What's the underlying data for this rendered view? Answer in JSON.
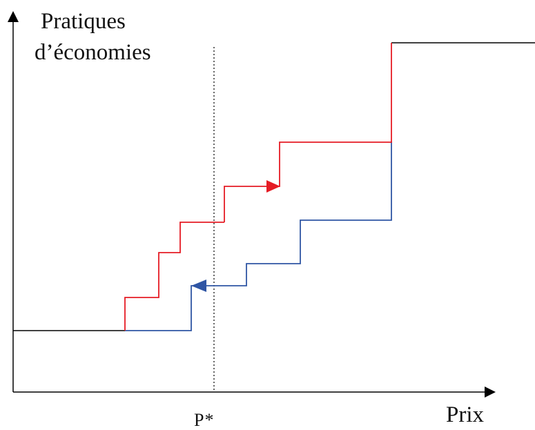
{
  "labels": {
    "y_axis_line1": "Pratiques",
    "y_axis_line2": "d’économies",
    "x_axis": "Prix",
    "reference_price": "P*"
  },
  "colors": {
    "axis": "#000000",
    "red_path": "#e51b24",
    "blue_path": "#2f55a4",
    "base_line": "#000000",
    "dotted_line": "#000000"
  }
}
